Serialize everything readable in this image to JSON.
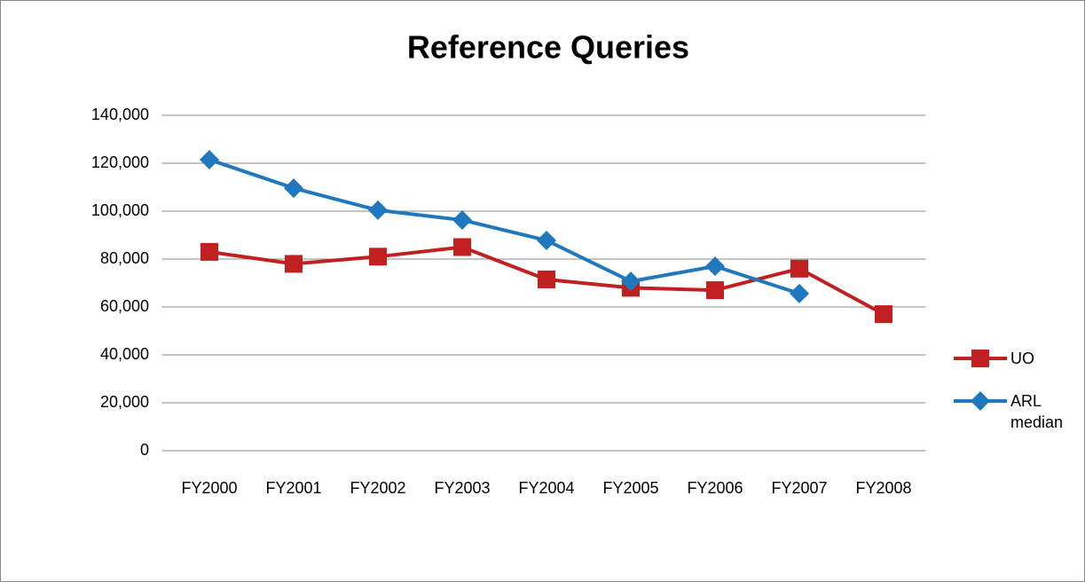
{
  "chart_data": {
    "type": "line",
    "title": "Reference Queries",
    "categories": [
      "FY2000",
      "FY2001",
      "FY2002",
      "FY2003",
      "FY2004",
      "FY2005",
      "FY2006",
      "FY2007",
      "FY2008"
    ],
    "series": [
      {
        "name": "UO",
        "color": "#c0201f",
        "marker": "square",
        "values": [
          83000,
          78000,
          81000,
          85000,
          71500,
          68000,
          67000,
          76000,
          57000
        ]
      },
      {
        "name": "ARL median",
        "color": "#1f77be",
        "marker": "diamond",
        "values": [
          121500,
          109600,
          100400,
          96300,
          87800,
          70700,
          77000,
          65600,
          null
        ]
      }
    ],
    "ylim": [
      0,
      140000
    ],
    "yticks": [
      0,
      {
        "value": 20000,
        "label": "20,000"
      },
      {
        "value": 40000,
        "label": "40,000"
      },
      {
        "value": 60000,
        "label": "60,000"
      },
      {
        "value": 80000,
        "label": "80,000"
      },
      {
        "value": 100000,
        "label": "100,000"
      },
      {
        "value": 120000,
        "label": "120,000"
      },
      {
        "value": 140000,
        "label": "140,000"
      }
    ],
    "grid": true,
    "legend": "right"
  }
}
